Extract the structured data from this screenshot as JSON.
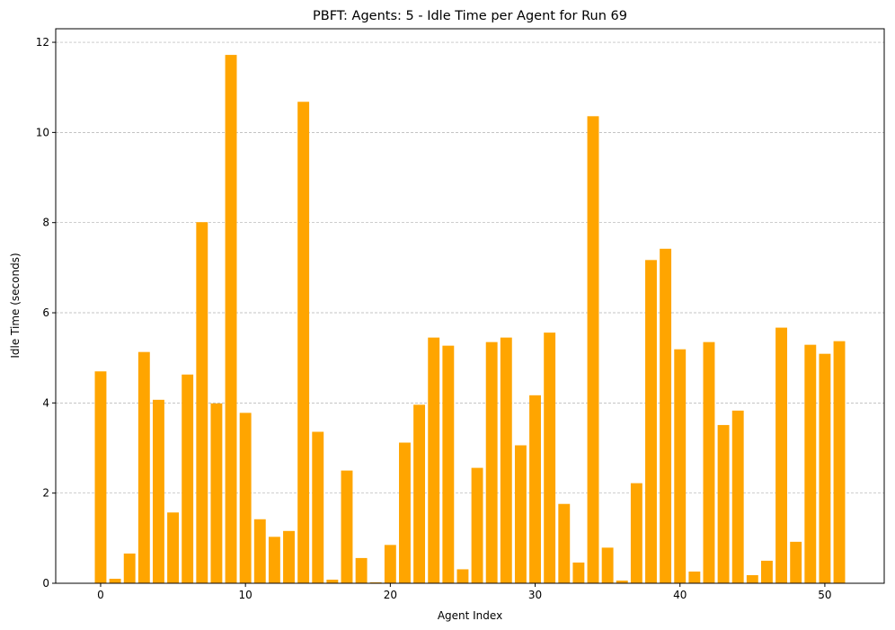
{
  "chart_data": {
    "type": "bar",
    "title": "PBFT: Agents: 5 - Idle Time per Agent for Run 69",
    "xlabel": "Agent Index",
    "ylabel": "Idle Time (seconds)",
    "bar_color": "#FFA500",
    "grid": "y-dashed",
    "xlim": [
      -3.1,
      54.1
    ],
    "ylim": [
      0,
      12.3
    ],
    "xticks": [
      0,
      10,
      20,
      30,
      40,
      50
    ],
    "yticks": [
      0,
      2,
      4,
      6,
      8,
      10,
      12
    ],
    "x": [
      0,
      1,
      2,
      3,
      4,
      5,
      6,
      7,
      8,
      9,
      10,
      11,
      12,
      13,
      14,
      15,
      16,
      17,
      18,
      19,
      20,
      21,
      22,
      23,
      24,
      25,
      26,
      27,
      28,
      29,
      30,
      31,
      32,
      33,
      34,
      35,
      36,
      37,
      38,
      39,
      40,
      41,
      42,
      43,
      44,
      45,
      46,
      47,
      48,
      49,
      50,
      51
    ],
    "values": [
      4.7,
      0.1,
      0.66,
      5.13,
      4.07,
      1.57,
      4.63,
      8.01,
      3.99,
      11.72,
      3.78,
      1.42,
      1.03,
      1.16,
      10.68,
      3.36,
      0.08,
      2.5,
      0.56,
      0.02,
      0.85,
      3.12,
      3.96,
      5.45,
      5.27,
      0.31,
      2.56,
      5.35,
      5.45,
      3.06,
      4.17,
      5.56,
      1.76,
      0.46,
      10.36,
      0.79,
      0.06,
      2.22,
      7.17,
      7.42,
      5.19,
      0.26,
      5.35,
      3.51,
      3.83,
      0.18,
      0.5,
      5.67,
      0.92,
      5.29,
      5.09,
      5.37
    ]
  }
}
